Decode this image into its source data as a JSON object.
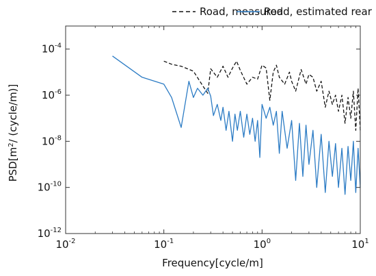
{
  "chart_data": {
    "type": "line",
    "xlabel": "Frequency[cycle/m]",
    "ylabel_prefix": "PSD[m",
    "ylabel_sup": "2",
    "ylabel_suffix": "/ (cycle/m)]",
    "xscale": "log",
    "yscale": "log",
    "xlim": [
      0.01,
      10
    ],
    "ylim": [
      1e-12,
      0.001
    ],
    "x_ticks": [
      {
        "value": 0.01,
        "base": "10",
        "exp": "-2"
      },
      {
        "value": 0.1,
        "base": "10",
        "exp": "-1"
      },
      {
        "value": 1,
        "base": "10",
        "exp": "0"
      },
      {
        "value": 10,
        "base": "10",
        "exp": "1"
      }
    ],
    "y_ticks": [
      {
        "value": 0.0001,
        "base": "10",
        "exp": "-4"
      },
      {
        "value": 1e-06,
        "base": "10",
        "exp": "-6"
      },
      {
        "value": 1e-08,
        "base": "10",
        "exp": "-8"
      },
      {
        "value": 1e-10,
        "base": "10",
        "exp": "-10"
      },
      {
        "value": 1e-12,
        "base": "10",
        "exp": "-12"
      }
    ],
    "legend_position": "top",
    "series": [
      {
        "name": "Road, measured",
        "color": "#111111",
        "style": "dashed",
        "x": [
          0.1,
          0.12,
          0.15,
          0.2,
          0.25,
          0.28,
          0.3,
          0.35,
          0.4,
          0.45,
          0.5,
          0.55,
          0.6,
          0.7,
          0.8,
          0.9,
          1.0,
          1.1,
          1.2,
          1.3,
          1.4,
          1.5,
          1.7,
          1.9,
          2.0,
          2.2,
          2.5,
          2.8,
          3.0,
          3.3,
          3.6,
          4.0,
          4.4,
          4.8,
          5.2,
          5.6,
          6.0,
          6.5,
          7.0,
          7.5,
          8.0,
          8.5,
          9.0,
          9.5,
          10.0
        ],
        "y": [
          3e-05,
          2.2e-05,
          1.8e-05,
          1.1e-05,
          2.5e-06,
          1.2e-06,
          1.4e-05,
          6e-06,
          1.8e-05,
          6e-06,
          1.5e-05,
          3e-05,
          1.2e-05,
          3e-06,
          6e-06,
          5e-06,
          2e-05,
          1.5e-05,
          6e-07,
          1e-05,
          2e-05,
          6e-06,
          3e-06,
          1e-05,
          4e-06,
          1.5e-06,
          1.3e-05,
          3e-06,
          8e-06,
          6e-06,
          1.5e-06,
          4e-06,
          3e-07,
          1.5e-06,
          4e-07,
          1e-06,
          2e-07,
          1e-06,
          6e-08,
          8e-07,
          1e-07,
          1.5e-06,
          3e-08,
          2e-06,
          3e-08
        ]
      },
      {
        "name": "Road, estimated rear",
        "color": "#2b7bc4",
        "style": "solid",
        "x": [
          0.03,
          0.06,
          0.1,
          0.12,
          0.15,
          0.18,
          0.2,
          0.22,
          0.25,
          0.28,
          0.3,
          0.32,
          0.35,
          0.38,
          0.4,
          0.43,
          0.46,
          0.5,
          0.53,
          0.56,
          0.6,
          0.65,
          0.7,
          0.75,
          0.8,
          0.85,
          0.9,
          0.95,
          1.0,
          1.1,
          1.2,
          1.3,
          1.4,
          1.5,
          1.6,
          1.8,
          2.0,
          2.2,
          2.4,
          2.6,
          2.8,
          3.0,
          3.3,
          3.6,
          4.0,
          4.4,
          4.8,
          5.2,
          5.6,
          6.0,
          6.5,
          7.0,
          7.5,
          8.0,
          8.5,
          9.0,
          9.5,
          10.0
        ],
        "y": [
          5e-05,
          6e-06,
          3e-06,
          8e-07,
          4e-08,
          4e-06,
          8e-07,
          2e-06,
          1e-06,
          2e-06,
          9e-07,
          1.3e-07,
          4e-07,
          8e-08,
          3e-07,
          3e-08,
          2e-07,
          1e-08,
          1.5e-07,
          3e-08,
          2e-07,
          1.5e-08,
          1.5e-07,
          2e-08,
          1e-07,
          1e-08,
          8e-08,
          2e-09,
          4e-07,
          1e-07,
          3e-07,
          5e-08,
          2e-07,
          3e-09,
          2e-07,
          5e-09,
          8e-08,
          2e-10,
          6e-08,
          3e-10,
          5e-08,
          1e-09,
          3e-08,
          1e-10,
          2e-08,
          6e-11,
          1e-08,
          3e-10,
          8e-09,
          1e-10,
          5e-09,
          5e-11,
          6e-09,
          2e-10,
          1e-08,
          6e-11,
          5e-09,
          1e-10
        ]
      }
    ]
  }
}
